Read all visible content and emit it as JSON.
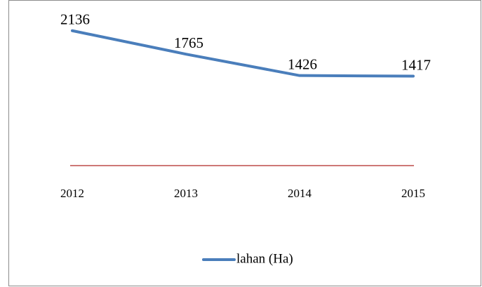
{
  "chart_data": {
    "type": "line",
    "categories": [
      "2012",
      "2013",
      "2014",
      "2015"
    ],
    "series": [
      {
        "name": "lahan (Ha)",
        "color": "#4a7ebb",
        "values": [
          2136,
          1765,
          1426,
          1417
        ]
      }
    ],
    "ylim": [
      0,
      2400
    ],
    "legend": "bottom"
  }
}
